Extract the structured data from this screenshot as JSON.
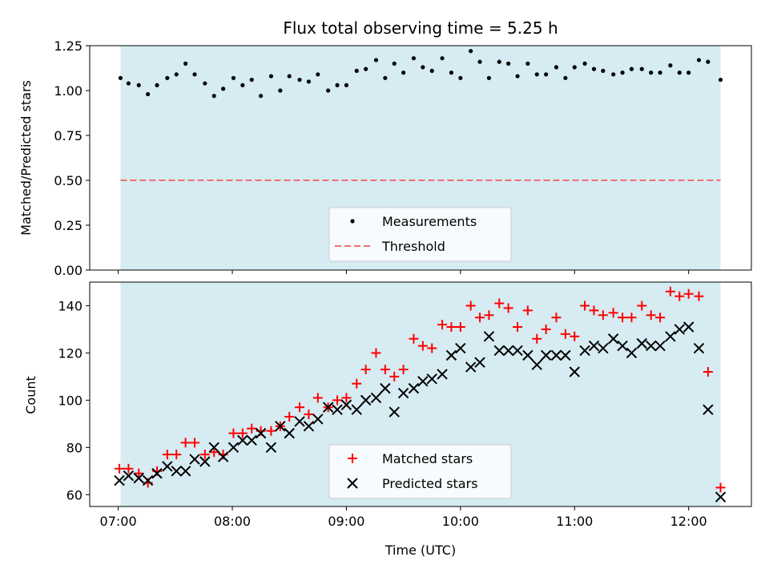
{
  "chart_data": [
    {
      "type": "scatter",
      "title": "Flux total observing time = 5.25 h",
      "xlabel": "",
      "ylabel": "Matched/Predicted stars",
      "ylim": [
        0,
        1.25
      ],
      "yticks": [
        0.0,
        0.25,
        0.5,
        0.75,
        1.0,
        1.25
      ],
      "ytick_labels": [
        "0.00",
        "0.25",
        "0.50",
        "0.75",
        "1.00",
        "1.25"
      ],
      "xlim_hours": [
        6.75,
        12.55
      ],
      "observing_window_hours": [
        7.02,
        12.28
      ],
      "legend_position": "bottom-center",
      "grid": false,
      "series": [
        {
          "name": "Measurements",
          "marker": "dot",
          "color": "#000000",
          "x": [
            7.02,
            7.09,
            7.18,
            7.26,
            7.34,
            7.43,
            7.51,
            7.59,
            7.67,
            7.76,
            7.84,
            7.92,
            8.01,
            8.09,
            8.17,
            8.25,
            8.34,
            8.42,
            8.5,
            8.59,
            8.67,
            8.75,
            8.84,
            8.92,
            9.0,
            9.09,
            9.17,
            9.26,
            9.34,
            9.42,
            9.5,
            9.59,
            9.67,
            9.75,
            9.84,
            9.92,
            10.0,
            10.09,
            10.17,
            10.25,
            10.34,
            10.42,
            10.5,
            10.59,
            10.67,
            10.75,
            10.84,
            10.92,
            11.0,
            11.09,
            11.17,
            11.25,
            11.34,
            11.42,
            11.5,
            11.59,
            11.67,
            11.75,
            11.84,
            11.92,
            12.0,
            12.09,
            12.17,
            12.28
          ],
          "y": [
            1.07,
            1.04,
            1.03,
            0.98,
            1.03,
            1.07,
            1.09,
            1.15,
            1.09,
            1.04,
            0.97,
            1.01,
            1.07,
            1.03,
            1.06,
            0.97,
            1.08,
            1.0,
            1.08,
            1.06,
            1.05,
            1.09,
            1.0,
            1.03,
            1.03,
            1.11,
            1.12,
            1.17,
            1.07,
            1.15,
            1.1,
            1.18,
            1.13,
            1.11,
            1.18,
            1.1,
            1.07,
            1.22,
            1.16,
            1.07,
            1.16,
            1.15,
            1.08,
            1.15,
            1.09,
            1.09,
            1.13,
            1.07,
            1.13,
            1.15,
            1.12,
            1.11,
            1.09,
            1.1,
            1.12,
            1.12,
            1.1,
            1.1,
            1.14,
            1.1,
            1.1,
            1.17,
            1.16,
            1.06
          ]
        },
        {
          "name": "Threshold",
          "marker": "dashed-line",
          "color": "#f07070",
          "y_constant": 0.5
        }
      ]
    },
    {
      "type": "scatter",
      "title": "",
      "xlabel": "Time (UTC)",
      "ylabel": "Count",
      "ylim": [
        55,
        150
      ],
      "yticks": [
        60,
        80,
        100,
        120,
        140
      ],
      "ytick_labels": [
        "60",
        "80",
        "100",
        "120",
        "140"
      ],
      "xlim_hours": [
        6.75,
        12.55
      ],
      "xticks_hours": [
        7,
        8,
        9,
        10,
        11,
        12
      ],
      "xtick_labels": [
        "07:00",
        "08:00",
        "09:00",
        "10:00",
        "11:00",
        "12:00"
      ],
      "observing_window_hours": [
        7.02,
        12.28
      ],
      "legend_position": "bottom-center",
      "grid": false,
      "series": [
        {
          "name": "Matched stars",
          "marker": "plus",
          "color": "#ff0000",
          "x": [
            7.01,
            7.09,
            7.18,
            7.26,
            7.34,
            7.43,
            7.51,
            7.59,
            7.67,
            7.76,
            7.84,
            7.92,
            8.01,
            8.09,
            8.17,
            8.25,
            8.34,
            8.42,
            8.5,
            8.59,
            8.67,
            8.75,
            8.84,
            8.92,
            9.0,
            9.09,
            9.17,
            9.26,
            9.34,
            9.42,
            9.5,
            9.59,
            9.67,
            9.75,
            9.84,
            9.92,
            10.0,
            10.09,
            10.17,
            10.25,
            10.34,
            10.42,
            10.5,
            10.59,
            10.67,
            10.75,
            10.84,
            10.92,
            11.0,
            11.09,
            11.17,
            11.25,
            11.34,
            11.42,
            11.5,
            11.59,
            11.67,
            11.75,
            11.84,
            11.92,
            12.0,
            12.09,
            12.17,
            12.28
          ],
          "y": [
            71,
            71,
            69,
            65,
            70,
            77,
            77,
            82,
            82,
            77,
            78,
            77,
            86,
            86,
            88,
            87,
            87,
            89,
            93,
            97,
            94,
            101,
            97,
            100,
            101,
            107,
            113,
            120,
            113,
            110,
            113,
            126,
            123,
            122,
            132,
            131,
            131,
            140,
            135,
            136,
            141,
            139,
            131,
            138,
            126,
            130,
            135,
            128,
            127,
            140,
            138,
            136,
            137,
            135,
            135,
            140,
            136,
            135,
            146,
            144,
            145,
            144,
            112,
            63
          ]
        },
        {
          "name": "Predicted stars",
          "marker": "x",
          "color": "#000000",
          "x": [
            7.01,
            7.09,
            7.18,
            7.26,
            7.34,
            7.43,
            7.51,
            7.59,
            7.67,
            7.76,
            7.84,
            7.92,
            8.01,
            8.09,
            8.17,
            8.25,
            8.34,
            8.42,
            8.5,
            8.59,
            8.67,
            8.75,
            8.84,
            8.92,
            9.0,
            9.09,
            9.17,
            9.26,
            9.34,
            9.42,
            9.5,
            9.59,
            9.67,
            9.75,
            9.84,
            9.92,
            10.0,
            10.09,
            10.17,
            10.25,
            10.34,
            10.42,
            10.5,
            10.59,
            10.67,
            10.75,
            10.84,
            10.92,
            11.0,
            11.09,
            11.17,
            11.25,
            11.34,
            11.42,
            11.5,
            11.59,
            11.67,
            11.75,
            11.84,
            11.92,
            12.0,
            12.09,
            12.17,
            12.28
          ],
          "y": [
            66,
            68,
            67,
            66,
            69,
            72,
            70,
            70,
            75,
            74,
            80,
            76,
            80,
            83,
            83,
            86,
            80,
            89,
            86,
            91,
            89,
            92,
            97,
            96,
            98,
            96,
            100,
            101,
            105,
            95,
            103,
            105,
            108,
            109,
            111,
            119,
            122,
            114,
            116,
            127,
            121,
            121,
            121,
            119,
            115,
            119,
            119,
            119,
            112,
            121,
            123,
            122,
            126,
            123,
            120,
            124,
            123,
            123,
            127,
            130,
            131,
            122,
            96,
            59
          ]
        }
      ]
    }
  ]
}
